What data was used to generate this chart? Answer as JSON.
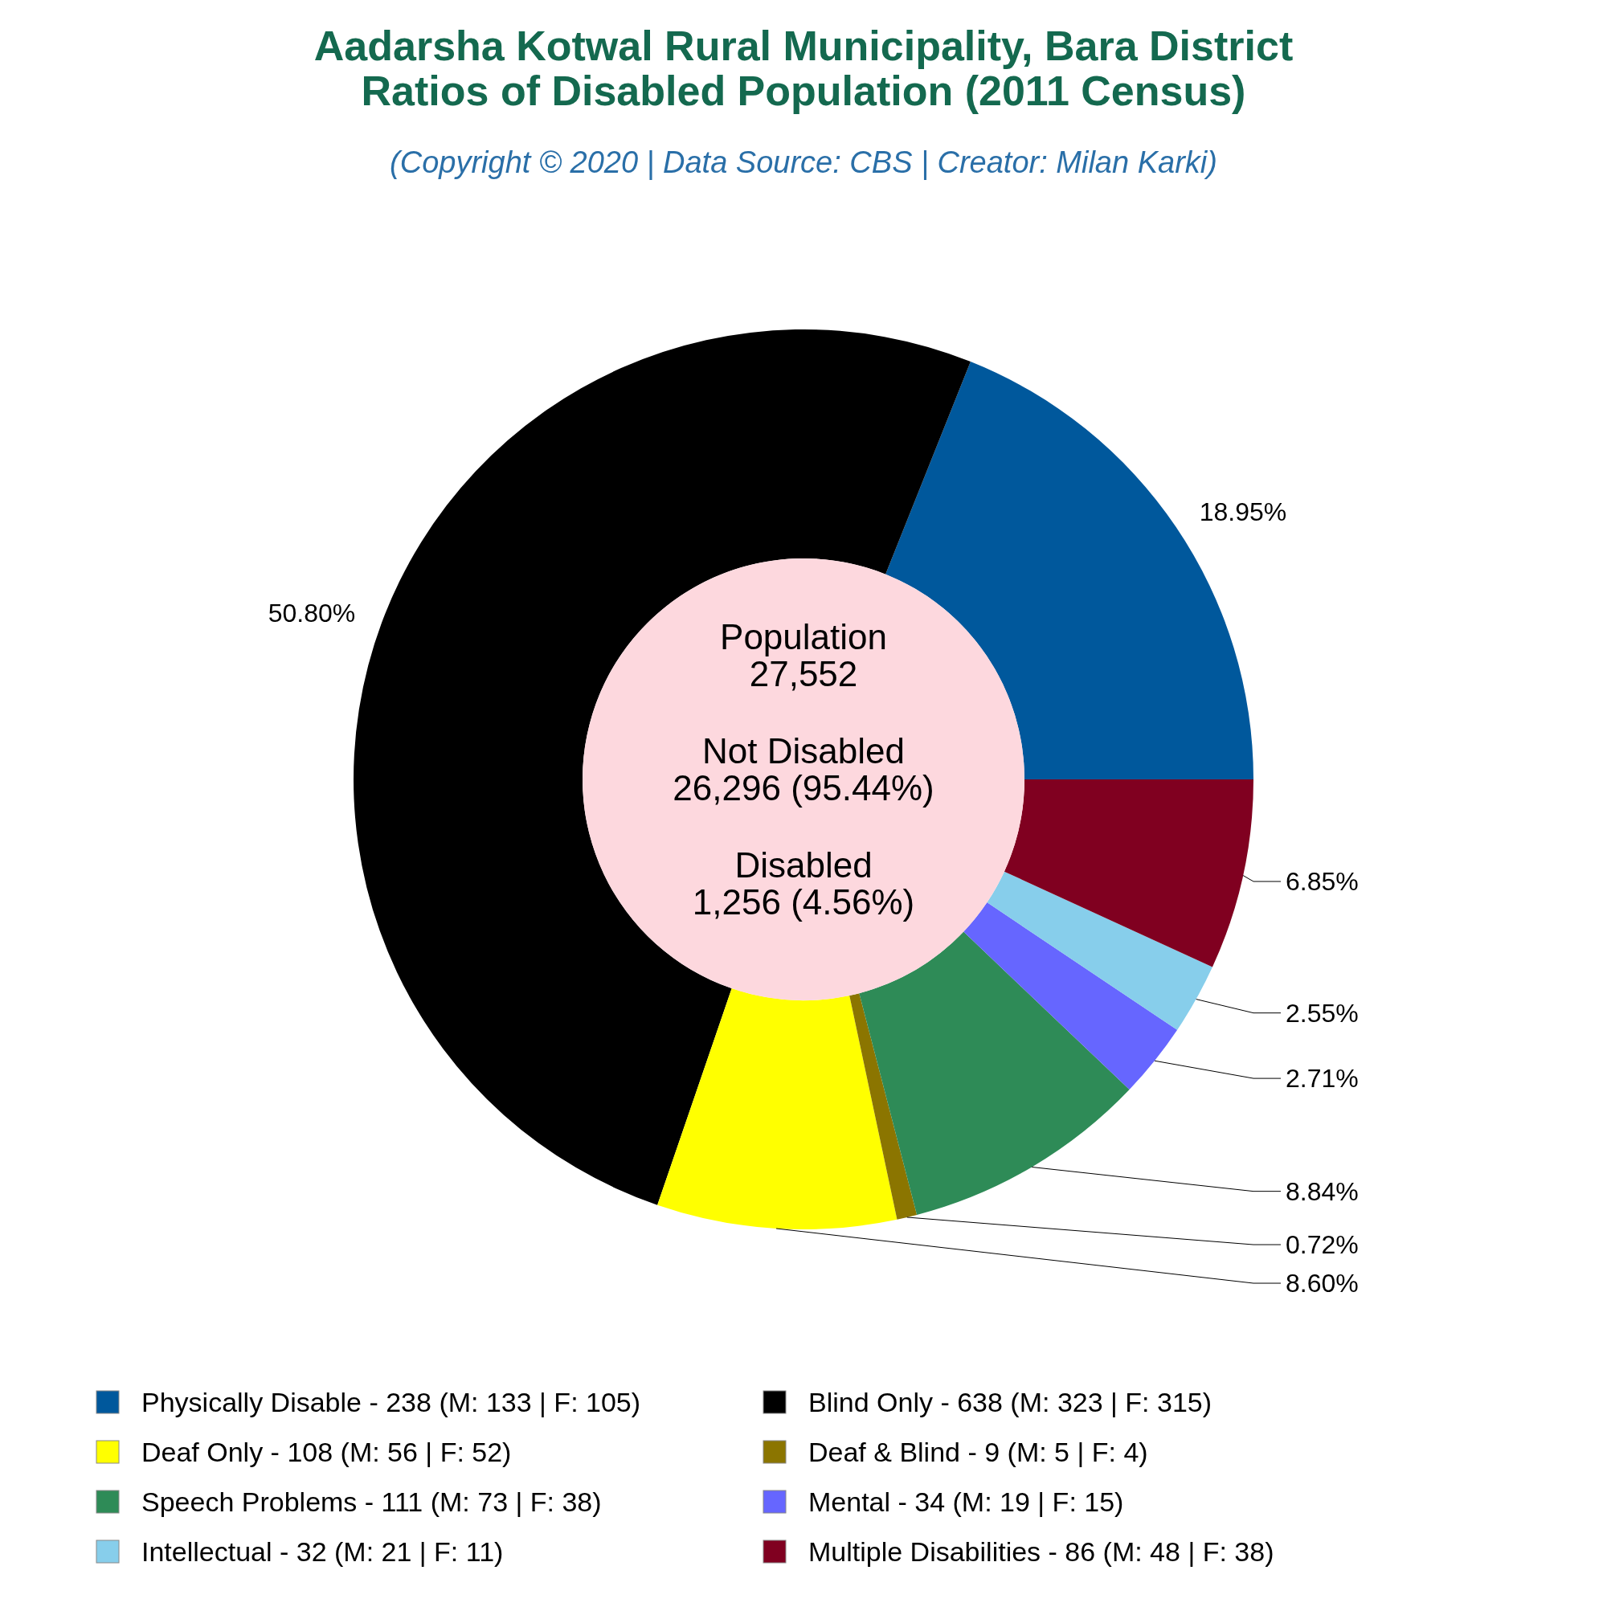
{
  "chart_data": {
    "type": "donut",
    "title": "Aadarsha Kotwal Rural Municipality, Bara District\nRatios of Disabled Population (2011 Census)",
    "subtitle": "(Copyright © 2020 | Data Source: CBS | Creator: Milan Karki)",
    "categories": [
      "Physically Disable - 238 (M: 133 | F: 105)",
      "Blind Only - 638 (M: 323 | F: 315)",
      "Deaf Only - 108 (M: 56 | F: 52)",
      "Deaf & Blind - 9 (M: 5 | F: 4)",
      "Speech Problems - 111 (M: 73 | F: 38)",
      "Mental - 34 (M: 19 | F: 15)",
      "Intellectual - 32 (M: 21 | F: 11)",
      "Multiple Disabilities - 86 (M: 48 | F: 38)"
    ],
    "values": [
      18.95,
      50.8,
      8.6,
      0.72,
      8.84,
      2.71,
      2.55,
      6.85
    ],
    "value_labels": [
      "18.95%",
      "50.80%",
      "8.60%",
      "0.72%",
      "8.84%",
      "2.71%",
      "2.55%",
      "6.85%"
    ],
    "colors": [
      "#00589c",
      "#000000",
      "#ffff00",
      "#8b7500",
      "#2e8b57",
      "#6666ff",
      "#87ceeb",
      "#800020"
    ],
    "annotations": [
      "Population\n27,552",
      "Not Disabled\n26,296 (95.44%)",
      "Disabled\n1,256 (4.56%)"
    ],
    "legend": "bottom"
  }
}
